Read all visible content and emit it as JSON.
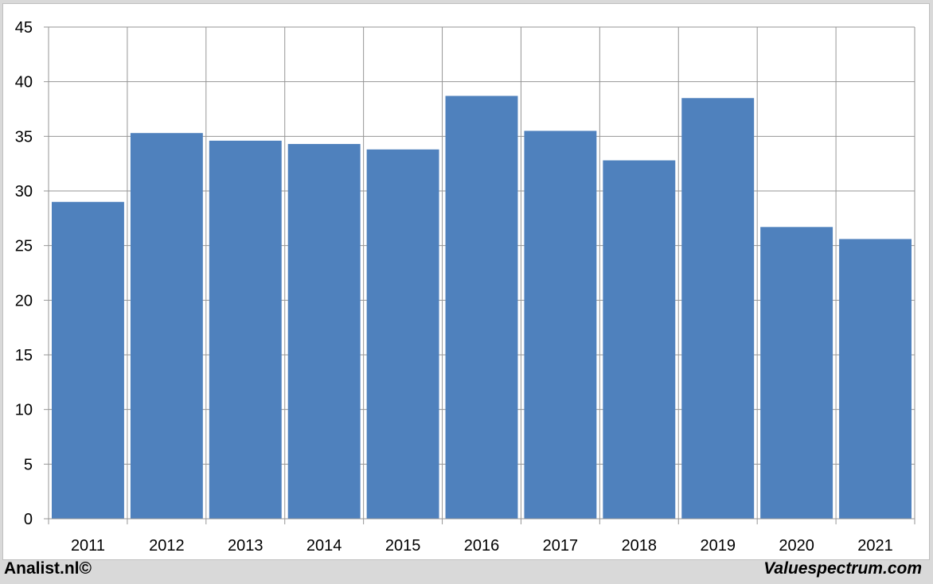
{
  "chart_data": {
    "type": "bar",
    "categories": [
      "2011",
      "2012",
      "2013",
      "2014",
      "2015",
      "2016",
      "2017",
      "2018",
      "2019",
      "2020",
      "2021"
    ],
    "values": [
      29.0,
      35.3,
      34.6,
      34.3,
      33.8,
      38.7,
      35.5,
      32.8,
      38.5,
      26.7,
      25.6
    ],
    "title": "",
    "xlabel": "",
    "ylabel": "",
    "ylim": [
      0,
      45
    ],
    "yticks": [
      "0",
      "5",
      "10",
      "15",
      "20",
      "25",
      "30",
      "35",
      "40",
      "45"
    ],
    "grid": true,
    "legend": "none",
    "bar_color": "#4f81bd",
    "grid_color": "#969696"
  },
  "footer": {
    "left_text": "Analist.nl©",
    "right_text": "Valuespectrum.com"
  }
}
